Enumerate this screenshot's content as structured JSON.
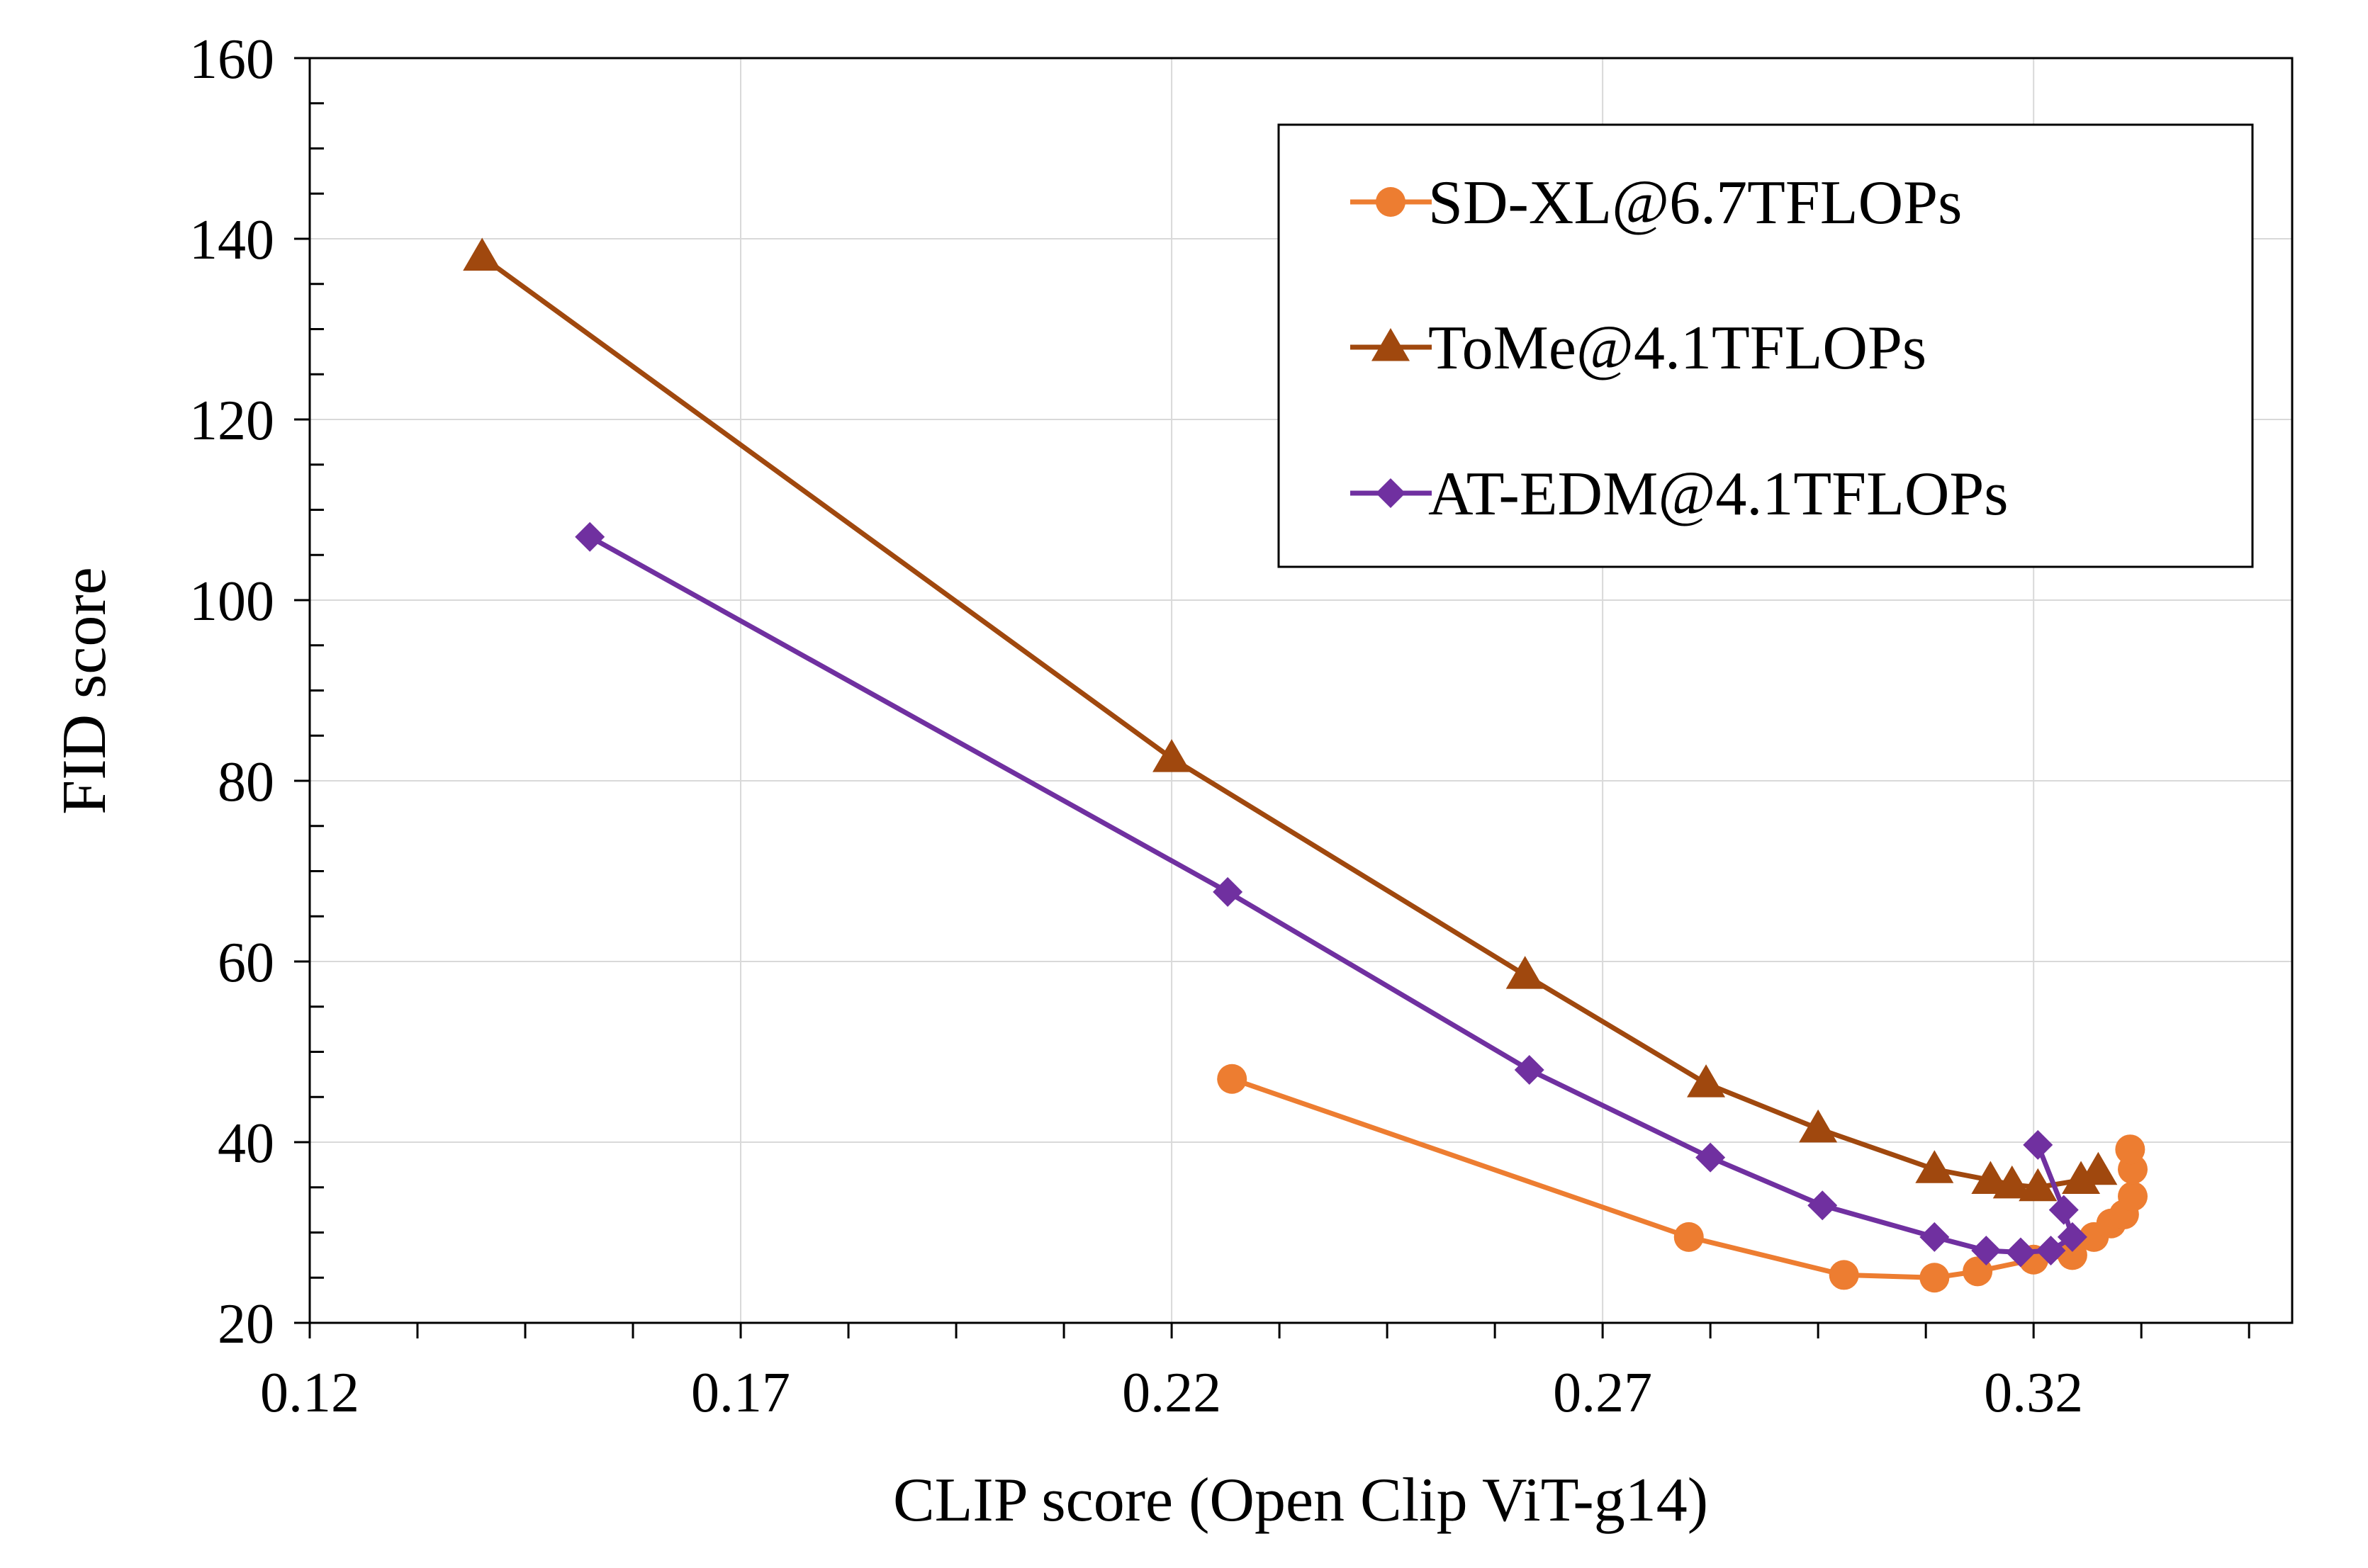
{
  "chart_data": {
    "type": "line",
    "title": "",
    "xlabel": "CLIP score (Open Clip ViT-g14)",
    "ylabel": "FID score",
    "xlim": [
      0.12,
      0.35
    ],
    "ylim": [
      20,
      160
    ],
    "x_ticks": [
      "0.12",
      "0.17",
      "0.22",
      "0.27",
      "0.32"
    ],
    "y_ticks": [
      "20",
      "40",
      "60",
      "80",
      "100",
      "120",
      "140",
      "160"
    ],
    "grid": true,
    "legend_position": "top-right",
    "series": [
      {
        "name": "SD-XL@6.7TFLOPs",
        "color": "#ED7D31",
        "marker": "circle",
        "points": [
          [
            0.227,
            47.0
          ],
          [
            0.28,
            29.5
          ],
          [
            0.298,
            25.3
          ],
          [
            0.3085,
            25.0
          ],
          [
            0.3135,
            25.7
          ],
          [
            0.32,
            27.0
          ],
          [
            0.3245,
            27.5
          ],
          [
            0.327,
            29.5
          ],
          [
            0.329,
            31.0
          ],
          [
            0.3305,
            32.0
          ],
          [
            0.3315,
            34.0
          ],
          [
            0.3315,
            37.0
          ],
          [
            0.3312,
            39.2
          ]
        ]
      },
      {
        "name": "ToMe@4.1TFLOPs",
        "color": "#A0480E",
        "marker": "triangle",
        "points": [
          [
            0.14,
            138.0
          ],
          [
            0.22,
            82.5
          ],
          [
            0.261,
            58.5
          ],
          [
            0.282,
            46.5
          ],
          [
            0.295,
            41.5
          ],
          [
            0.3085,
            37.0
          ],
          [
            0.315,
            35.8
          ],
          [
            0.3175,
            35.3
          ],
          [
            0.3205,
            35.0
          ],
          [
            0.3255,
            35.8
          ],
          [
            0.3275,
            36.8
          ]
        ]
      },
      {
        "name": "AT-EDM@4.1TFLOPs",
        "color": "#7030A0",
        "marker": "diamond",
        "points": [
          [
            0.1525,
            107.0
          ],
          [
            0.2265,
            67.7
          ],
          [
            0.2615,
            48.0
          ],
          [
            0.2825,
            38.3
          ],
          [
            0.2955,
            33.0
          ],
          [
            0.3085,
            29.5
          ],
          [
            0.3145,
            28.0
          ],
          [
            0.3185,
            27.8
          ],
          [
            0.322,
            28.0
          ],
          [
            0.3245,
            29.5
          ],
          [
            0.3235,
            32.5
          ],
          [
            0.3205,
            39.7
          ]
        ]
      }
    ]
  }
}
